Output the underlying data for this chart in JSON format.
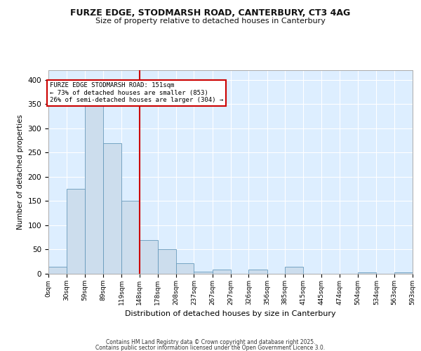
{
  "title1": "FURZE EDGE, STODMARSH ROAD, CANTERBURY, CT3 4AG",
  "title2": "Size of property relative to detached houses in Canterbury",
  "xlabel": "Distribution of detached houses by size in Canterbury",
  "ylabel": "Number of detached properties",
  "bar_color": "#ccdded",
  "bar_edge_color": "#6699bb",
  "background_color": "#ddeeff",
  "grid_color": "#ffffff",
  "vline_color": "#cc0000",
  "vline_x": 148,
  "annotation_line1": "FURZE EDGE STODMARSH ROAD: 151sqm",
  "annotation_line2": "← 73% of detached houses are smaller (853)",
  "annotation_line3": "26% of semi-detached houses are larger (304) →",
  "annotation_box_color": "#ffffff",
  "annotation_border_color": "#cc0000",
  "bins": [
    0,
    30,
    59,
    89,
    119,
    148,
    178,
    208,
    237,
    267,
    297,
    326,
    356,
    385,
    415,
    445,
    474,
    504,
    534,
    563,
    593
  ],
  "counts": [
    15,
    175,
    370,
    270,
    150,
    70,
    50,
    22,
    5,
    8,
    0,
    8,
    0,
    15,
    0,
    0,
    0,
    3,
    0,
    3
  ],
  "footer1": "Contains HM Land Registry data © Crown copyright and database right 2025.",
  "footer2": "Contains public sector information licensed under the Open Government Licence 3.0.",
  "ylim": [
    0,
    420
  ],
  "yticks": [
    0,
    50,
    100,
    150,
    200,
    250,
    300,
    350,
    400
  ]
}
